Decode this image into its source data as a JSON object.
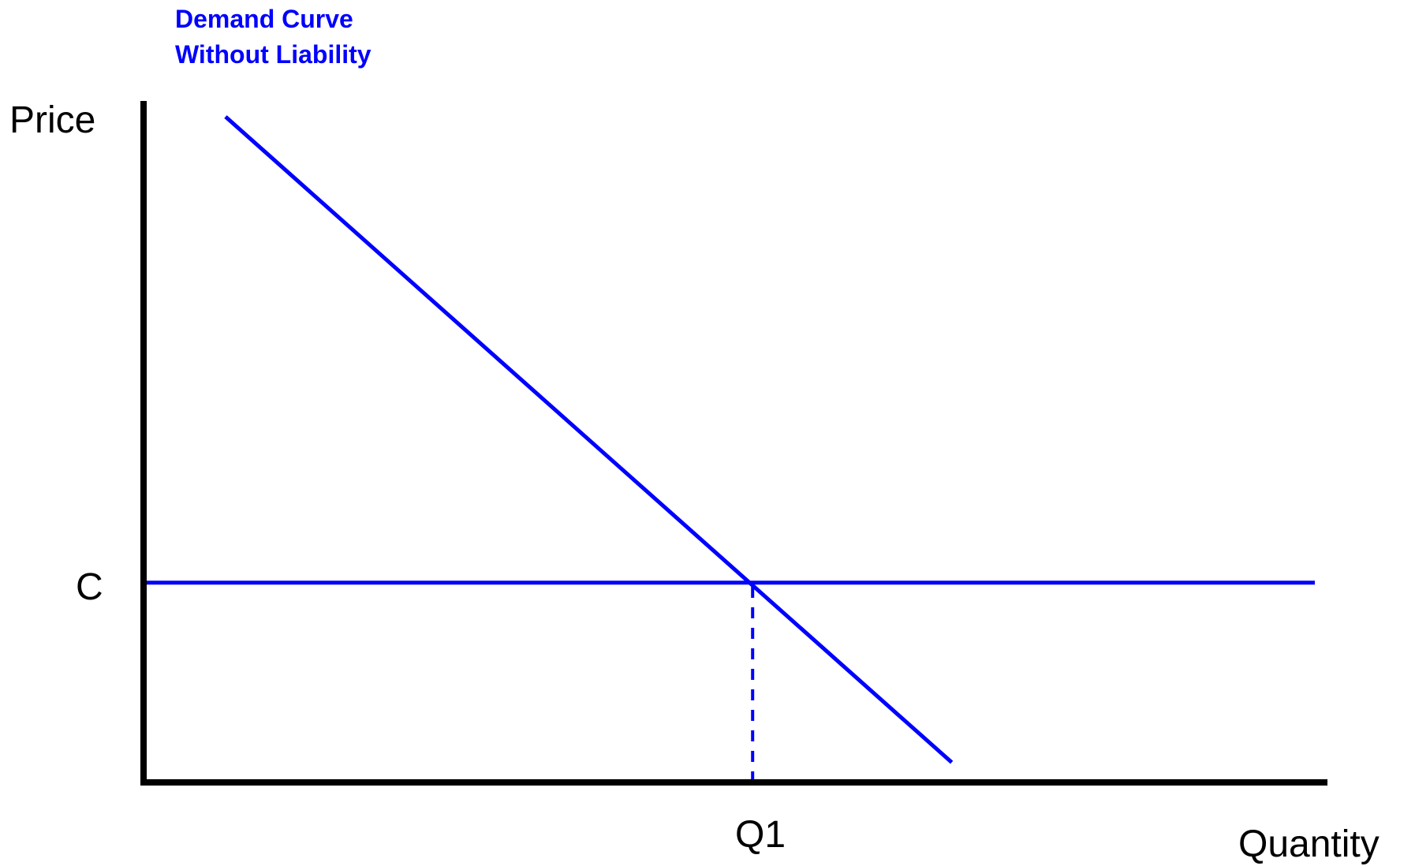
{
  "chart_data": {
    "type": "line",
    "title": "",
    "xlabel": "Quantity",
    "ylabel": "Price",
    "grid": false,
    "series": [
      {
        "name": "Demand Curve\nWithout Liability",
        "label_lines": [
          "Demand Curve",
          "Without Liability"
        ],
        "color": "#0000ff",
        "style": "solid",
        "points": [
          [
            0.07,
            1.0
          ],
          [
            0.69,
            0.03
          ]
        ]
      },
      {
        "name": "",
        "color": "#0000ff",
        "style": "solid",
        "points": [
          [
            0.0,
            0.3
          ],
          [
            1.0,
            0.3
          ]
        ]
      }
    ],
    "reference_lines": [
      {
        "label": "Q1",
        "color": "#0000ff",
        "style": "dashed",
        "points": [
          [
            0.52,
            0.0
          ],
          [
            0.52,
            0.3
          ]
        ]
      }
    ],
    "y_tick_labels": [
      {
        "label": "C",
        "value": 0.3
      }
    ],
    "x_tick_labels": [
      {
        "label": "Q1",
        "value": 0.52
      }
    ],
    "xlim": [
      0,
      1
    ],
    "ylim": [
      0,
      1
    ],
    "colors": {
      "curve": "#0000ff",
      "axis": "#000000",
      "text": "#000000"
    }
  }
}
